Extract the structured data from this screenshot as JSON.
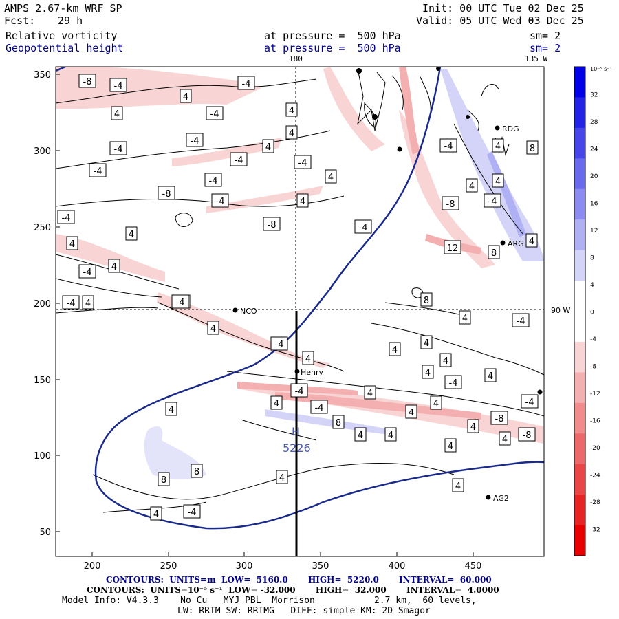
{
  "header": {
    "model": "AMPS 2.67-km WRF SP",
    "fcst_label": "Fcst:",
    "fcst_value": "29 h",
    "init": "Init: 00 UTC Tue 02 Dec 25",
    "valid": "Valid: 05 UTC Wed 03 Dec 25",
    "field1": "Relative vorticity",
    "field2": "Geopotential height",
    "pressure1": "at pressure =  500 hPa",
    "pressure2": "at pressure =  500 hPa",
    "sm1": "sm= 2",
    "sm2": "sm= 2"
  },
  "map": {
    "top_label_180": "180",
    "top_label_135w": "135 W",
    "right_label_90w": "90 W",
    "x_ticks": [
      "200",
      "250",
      "300",
      "350",
      "400",
      "450"
    ],
    "y_ticks": [
      "350",
      "300",
      "250",
      "200",
      "150",
      "100",
      "50"
    ],
    "high_label": "H",
    "high_value": "5226",
    "stations": [
      {
        "name": "RDG"
      },
      {
        "name": "NCO"
      },
      {
        "name": "Henry"
      },
      {
        "name": "AG2"
      },
      {
        "name": "ARG"
      }
    ],
    "contour_labels": [
      "-8",
      "-4",
      "-4",
      "4",
      "-4",
      "4",
      "4",
      "-4",
      "-4",
      "4",
      "4",
      "-4",
      "-4",
      "-4",
      "-4",
      "-8",
      "4",
      "-4",
      "4",
      "-4",
      "-8",
      "4",
      "-4",
      "4",
      "4",
      "-4",
      "-4",
      "4",
      "4",
      "-8",
      "12",
      "8",
      "8",
      "-4",
      "-4",
      "4",
      "-4",
      "4",
      "4",
      "4",
      "-4",
      "4",
      "4",
      "4",
      "4",
      "-4",
      "4",
      "-4",
      "-4",
      "4",
      "4",
      "4",
      "-4",
      "8",
      "4",
      "4",
      "-8",
      "4",
      "-8",
      "4",
      "8",
      "8",
      "4",
      "4",
      "4",
      "4",
      "4",
      "-4",
      "4",
      "-4",
      "8",
      "4",
      "-4",
      "4"
    ]
  },
  "colorbar": {
    "unit_label": "10⁻⁵ s⁻¹",
    "ticks": [
      "32",
      "28",
      "24",
      "20",
      "16",
      "12",
      "8",
      "4",
      "0",
      "-4",
      "-8",
      "-12",
      "-16",
      "-20",
      "-24",
      "-28",
      "-32"
    ],
    "colors": [
      "#0000e6",
      "#2323e8",
      "#4646ea",
      "#6969ec",
      "#8c8cf0",
      "#b0b0f4",
      "#d4d4f8",
      "#ffffff",
      "#ffffff",
      "#f8d4d4",
      "#f4b0b0",
      "#f08c8c",
      "#ec6969",
      "#ea4646",
      "#e82323",
      "#e60000"
    ]
  },
  "footer": {
    "line1": "CONTOURS:  UNITS=m  LOW=  5160.0       HIGH=  5220.0       INTERVAL=  60.000",
    "line2": "CONTOURS:  UNITS=10⁻⁵ s⁻¹  LOW= -32.000       HIGH=  32.000       INTERVAL=  4.0000",
    "line3": "Model Info: V4.3.3    No Cu   MYJ PBL  Morrison           2.7 km,  60 levels,",
    "line4": "LW: RRTM SW: RRTMG   DIFF: simple KM: 2D Smagor"
  }
}
